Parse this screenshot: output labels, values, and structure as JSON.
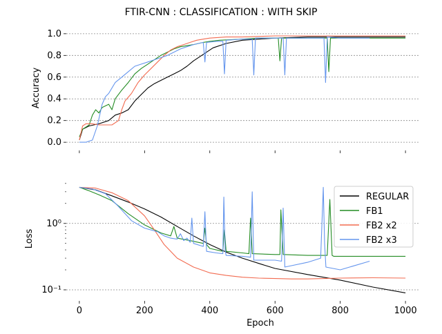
{
  "title": "FTIR-CNN : CLASSIFICATION : WITH SKIP",
  "colors": {
    "REGULAR": "#000000",
    "FB1": "#228b22",
    "FB2 x2": "#f26a4f",
    "FB2 x3": "#6495ed",
    "grid": "#888888"
  },
  "chart_data": [
    {
      "type": "line",
      "title": "FTIR-CNN : CLASSIFICATION : WITH SKIP",
      "xlabel": "",
      "ylabel": "Accuracy",
      "xlim": [
        -40,
        1040
      ],
      "ylim": [
        -0.05,
        1.05
      ],
      "yticks": [
        0.0,
        0.2,
        0.4,
        0.6,
        0.8,
        1.0
      ],
      "ytick_labels": [
        "0.0",
        "0.2",
        "0.4",
        "0.6",
        "0.8",
        "1.0"
      ],
      "xticks": [
        0,
        200,
        400,
        600,
        800,
        1000
      ],
      "grid": "horizontal dashed",
      "series": [
        {
          "name": "REGULAR",
          "x": [
            0,
            10,
            30,
            60,
            90,
            110,
            130,
            150,
            170,
            190,
            210,
            230,
            250,
            270,
            290,
            310,
            330,
            350,
            370,
            390,
            410,
            450,
            500,
            550,
            600,
            700,
            800,
            900,
            1000
          ],
          "y": [
            0.02,
            0.12,
            0.15,
            0.17,
            0.2,
            0.25,
            0.27,
            0.3,
            0.38,
            0.44,
            0.5,
            0.54,
            0.57,
            0.6,
            0.63,
            0.66,
            0.7,
            0.75,
            0.79,
            0.83,
            0.87,
            0.91,
            0.94,
            0.95,
            0.96,
            0.97,
            0.97,
            0.97,
            0.97
          ]
        },
        {
          "name": "FB1",
          "x": [
            0,
            10,
            30,
            40,
            50,
            60,
            70,
            90,
            100,
            110,
            130,
            150,
            170,
            190,
            210,
            230,
            250,
            270,
            290,
            310,
            330,
            350,
            380,
            400,
            430,
            500,
            550,
            580,
            610,
            615,
            620,
            630,
            700,
            760,
            765,
            770,
            780,
            850,
            1000
          ],
          "y": [
            0.05,
            0.12,
            0.16,
            0.25,
            0.3,
            0.27,
            0.32,
            0.35,
            0.3,
            0.4,
            0.48,
            0.55,
            0.63,
            0.68,
            0.72,
            0.76,
            0.8,
            0.83,
            0.86,
            0.88,
            0.89,
            0.9,
            0.92,
            0.93,
            0.94,
            0.95,
            0.96,
            0.96,
            0.96,
            0.75,
            0.96,
            0.96,
            0.96,
            0.96,
            0.65,
            0.96,
            0.96,
            0.96,
            0.96
          ]
        },
        {
          "name": "FB2 x2",
          "x": [
            0,
            10,
            20,
            40,
            60,
            80,
            100,
            120,
            130,
            140,
            160,
            180,
            200,
            220,
            240,
            260,
            280,
            300,
            320,
            340,
            360,
            380,
            400,
            450,
            500,
            600,
            700,
            800,
            1000
          ],
          "y": [
            0.02,
            0.15,
            0.17,
            0.17,
            0.16,
            0.16,
            0.16,
            0.2,
            0.3,
            0.38,
            0.45,
            0.55,
            0.62,
            0.68,
            0.74,
            0.8,
            0.85,
            0.88,
            0.9,
            0.92,
            0.94,
            0.95,
            0.96,
            0.97,
            0.97,
            0.98,
            0.98,
            0.98,
            0.98
          ]
        },
        {
          "name": "FB2 x3",
          "x": [
            0,
            20,
            40,
            55,
            70,
            80,
            90,
            110,
            130,
            150,
            170,
            190,
            210,
            230,
            250,
            270,
            290,
            310,
            330,
            350,
            380,
            385,
            390,
            420,
            440,
            445,
            450,
            500,
            530,
            535,
            540,
            600,
            625,
            630,
            635,
            700,
            750,
            755,
            760,
            800,
            890
          ],
          "y": [
            0.0,
            0.0,
            0.02,
            0.15,
            0.35,
            0.42,
            0.45,
            0.55,
            0.6,
            0.65,
            0.7,
            0.72,
            0.74,
            0.76,
            0.78,
            0.8,
            0.83,
            0.86,
            0.88,
            0.9,
            0.92,
            0.74,
            0.92,
            0.93,
            0.93,
            0.63,
            0.94,
            0.95,
            0.95,
            0.62,
            0.96,
            0.96,
            0.96,
            0.62,
            0.96,
            0.96,
            0.96,
            0.55,
            0.97,
            0.96,
            0.96
          ]
        }
      ]
    },
    {
      "type": "line",
      "xlabel": "Epoch",
      "ylabel": "Loss",
      "yscale": "log",
      "xlim": [
        -40,
        1040
      ],
      "ylim": [
        0.075,
        4.6
      ],
      "yticks": [
        0.1,
        1.0
      ],
      "ytick_labels": [
        "10⁻¹",
        "10⁰"
      ],
      "xticks": [
        0,
        200,
        400,
        600,
        800,
        1000
      ],
      "xtick_labels": [
        "0",
        "200",
        "400",
        "600",
        "800",
        "1000"
      ],
      "grid": "horizontal dashed",
      "legend": "top-right",
      "series": [
        {
          "name": "REGULAR",
          "x": [
            0,
            50,
            100,
            150,
            200,
            250,
            300,
            350,
            400,
            450,
            500,
            550,
            600,
            700,
            800,
            900,
            1000
          ],
          "y": [
            3.5,
            3.2,
            2.6,
            2.1,
            1.65,
            1.25,
            0.9,
            0.65,
            0.48,
            0.37,
            0.3,
            0.25,
            0.21,
            0.17,
            0.14,
            0.11,
            0.09
          ]
        },
        {
          "name": "FB1",
          "x": [
            0,
            30,
            60,
            100,
            150,
            200,
            250,
            280,
            290,
            300,
            340,
            380,
            385,
            390,
            400,
            440,
            445,
            450,
            500,
            520,
            525,
            530,
            600,
            615,
            618,
            625,
            700,
            760,
            768,
            775,
            780,
            850,
            1000
          ],
          "y": [
            3.5,
            3.1,
            2.7,
            2.2,
            1.4,
            0.95,
            0.72,
            0.65,
            0.9,
            0.6,
            0.55,
            0.5,
            0.85,
            0.48,
            0.42,
            0.38,
            0.8,
            0.38,
            0.36,
            0.35,
            1.2,
            0.35,
            0.34,
            0.34,
            1.6,
            0.34,
            0.33,
            0.33,
            2.3,
            0.33,
            0.32,
            0.32,
            0.32
          ]
        },
        {
          "name": "FB2 x2",
          "x": [
            0,
            50,
            100,
            150,
            200,
            230,
            260,
            300,
            350,
            400,
            450,
            500,
            550,
            600,
            650,
            700,
            750,
            800,
            900,
            1000
          ],
          "y": [
            3.5,
            3.4,
            2.9,
            2.2,
            1.3,
            0.8,
            0.48,
            0.3,
            0.22,
            0.18,
            0.165,
            0.155,
            0.15,
            0.148,
            0.146,
            0.146,
            0.148,
            0.15,
            0.152,
            0.15
          ]
        },
        {
          "name": "FB2 x3",
          "x": [
            0,
            40,
            80,
            120,
            160,
            200,
            240,
            260,
            280,
            300,
            310,
            320,
            330,
            340,
            345,
            350,
            380,
            385,
            390,
            420,
            440,
            443,
            447,
            450,
            500,
            525,
            530,
            535,
            600,
            620,
            625,
            630,
            700,
            740,
            748,
            752,
            756,
            800,
            890
          ],
          "y": [
            3.5,
            3.3,
            2.8,
            1.8,
            1.1,
            0.85,
            0.75,
            0.65,
            0.6,
            0.58,
            0.7,
            0.55,
            0.6,
            0.52,
            1.2,
            0.5,
            0.45,
            1.5,
            0.38,
            0.36,
            0.35,
            2.5,
            0.4,
            0.33,
            0.32,
            0.31,
            3.0,
            0.28,
            0.28,
            0.27,
            1.7,
            0.22,
            0.26,
            0.3,
            3.5,
            0.5,
            0.22,
            0.2,
            0.27
          ]
        }
      ]
    }
  ]
}
